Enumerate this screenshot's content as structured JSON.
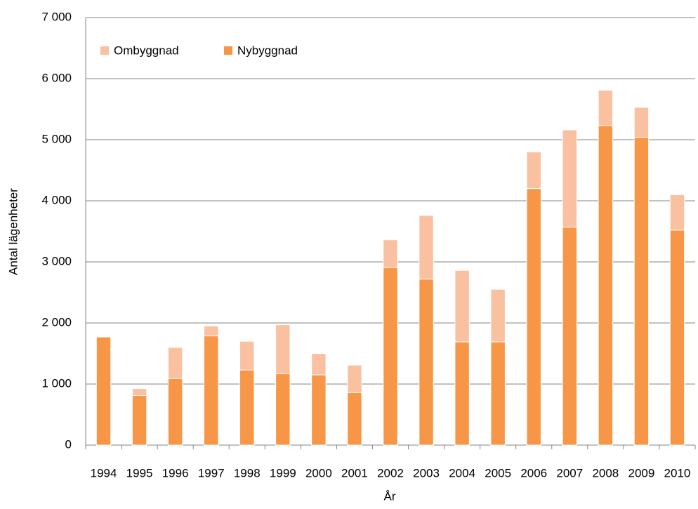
{
  "chart_data": {
    "type": "bar",
    "stacked": true,
    "categories": [
      "1994",
      "1995",
      "1996",
      "1997",
      "1998",
      "1999",
      "2000",
      "2001",
      "2002",
      "2003",
      "2004",
      "2005",
      "2006",
      "2007",
      "2008",
      "2009",
      "2010"
    ],
    "series": [
      {
        "name": "Ombyggnad",
        "color": "#fac1a0",
        "values": [
          0,
          115,
          510,
          160,
          470,
          800,
          350,
          450,
          450,
          1040,
          1170,
          860,
          600,
          1590,
          580,
          490,
          580
        ]
      },
      {
        "name": "Nybyggnad",
        "color": "#f79646",
        "values": [
          1770,
          810,
          1090,
          1790,
          1230,
          1170,
          1150,
          860,
          2910,
          2720,
          1690,
          1690,
          4200,
          3570,
          5230,
          5040,
          3520
        ]
      }
    ],
    "ylim": [
      0,
      7000
    ],
    "yticks": [
      0,
      {
        "value": 1000,
        "label": "1 000"
      },
      {
        "value": 2000,
        "label": "2 000"
      },
      {
        "value": 3000,
        "label": "3 000"
      },
      {
        "value": 4000,
        "label": "4 000"
      },
      {
        "value": 5000,
        "label": "5 000"
      },
      {
        "value": 6000,
        "label": "6 000"
      },
      {
        "value": 7000,
        "label": "7 000"
      }
    ],
    "grid": true,
    "xlabel": "År",
    "ylabel": "Antal lägenheter",
    "legend": "top-left"
  }
}
